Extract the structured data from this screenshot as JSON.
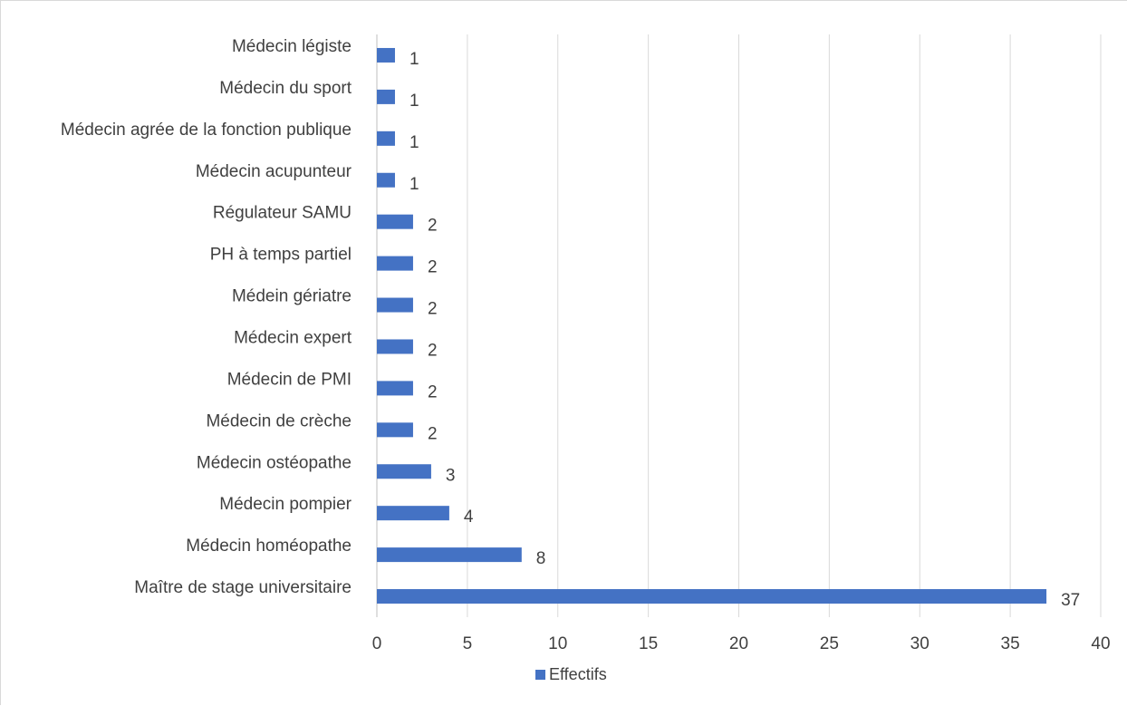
{
  "chart_data": {
    "type": "bar",
    "orientation": "horizontal",
    "categories": [
      "Médecin légiste",
      "Médecin du sport",
      "Médecin agrée de la fonction publique",
      "Médecin acupunteur",
      "Régulateur SAMU",
      "PH à temps partiel",
      "Médein gériatre",
      "Médecin expert",
      "Médecin de PMI",
      "Médecin de crèche",
      "Médecin ostéopathe",
      "Médecin pompier",
      "Médecin homéopathe",
      "Maître  de stage universitaire"
    ],
    "series": [
      {
        "name": "Effectifs",
        "color": "#4472c4",
        "values": [
          1,
          1,
          1,
          1,
          2,
          2,
          2,
          2,
          2,
          2,
          3,
          4,
          8,
          37
        ]
      }
    ],
    "xlim": [
      0,
      40
    ],
    "xticks": [
      0,
      5,
      10,
      15,
      20,
      25,
      30,
      35,
      40
    ],
    "grid": true,
    "legend": "bottom-center",
    "data_labels": true
  }
}
